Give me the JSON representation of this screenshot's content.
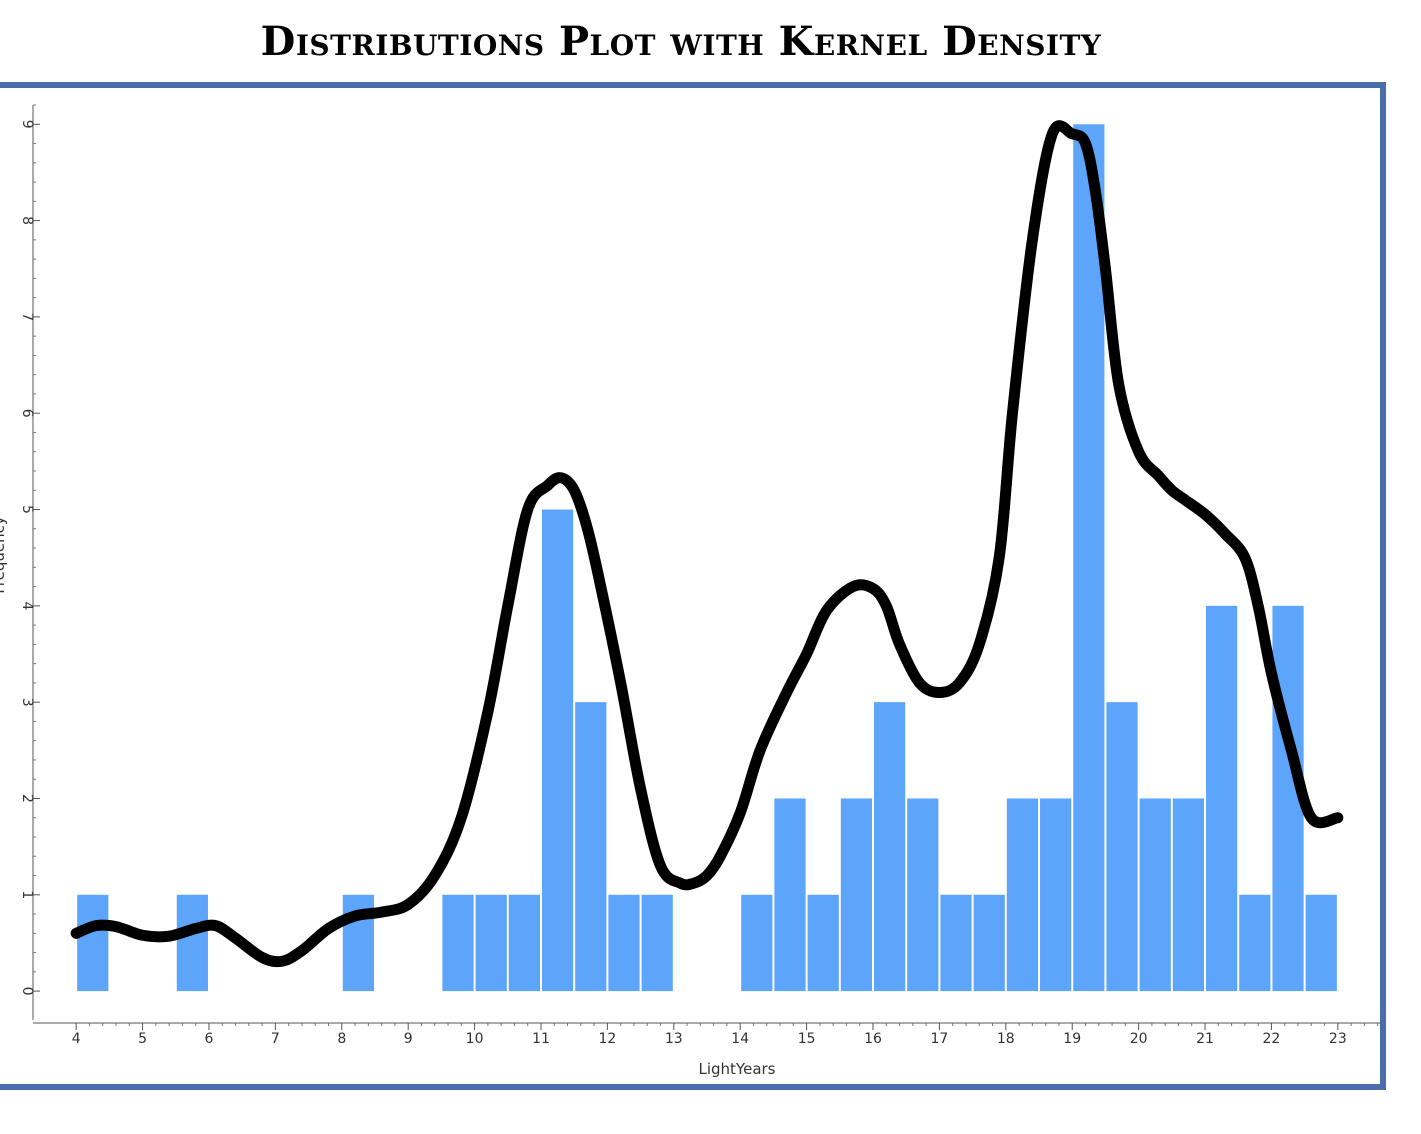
{
  "title": "Distributions Plot with Kernel Density",
  "colors": {
    "bar": "#5da4fb",
    "curve": "#000000",
    "frame": "#4a6ea9"
  },
  "chart_data": {
    "type": "bar",
    "xlabel": "LightYears",
    "ylabel": "Frequency",
    "xlim": [
      3.35,
      23.65
    ],
    "ylim": [
      -0.3,
      9.2
    ],
    "xticks": [
      4,
      5,
      6,
      7,
      8,
      9,
      10,
      11,
      12,
      13,
      14,
      15,
      16,
      17,
      18,
      19,
      20,
      21,
      22,
      23
    ],
    "yticks": [
      0,
      1,
      2,
      3,
      4,
      5,
      6,
      7,
      8,
      9
    ],
    "bin_width": 0.5,
    "bins": [
      {
        "start": 4.0,
        "count": 1
      },
      {
        "start": 5.5,
        "count": 1
      },
      {
        "start": 8.0,
        "count": 1
      },
      {
        "start": 9.5,
        "count": 1
      },
      {
        "start": 10.0,
        "count": 1
      },
      {
        "start": 10.5,
        "count": 1
      },
      {
        "start": 11.0,
        "count": 5
      },
      {
        "start": 11.5,
        "count": 3
      },
      {
        "start": 12.0,
        "count": 1
      },
      {
        "start": 12.5,
        "count": 1
      },
      {
        "start": 14.0,
        "count": 1
      },
      {
        "start": 14.5,
        "count": 2
      },
      {
        "start": 15.0,
        "count": 1
      },
      {
        "start": 15.5,
        "count": 2
      },
      {
        "start": 16.0,
        "count": 3
      },
      {
        "start": 16.5,
        "count": 2
      },
      {
        "start": 17.0,
        "count": 1
      },
      {
        "start": 17.5,
        "count": 1
      },
      {
        "start": 18.0,
        "count": 2
      },
      {
        "start": 18.5,
        "count": 2
      },
      {
        "start": 19.0,
        "count": 9
      },
      {
        "start": 19.5,
        "count": 3
      },
      {
        "start": 20.0,
        "count": 2
      },
      {
        "start": 20.5,
        "count": 2
      },
      {
        "start": 21.0,
        "count": 4
      },
      {
        "start": 21.5,
        "count": 1
      },
      {
        "start": 22.0,
        "count": 4
      },
      {
        "start": 22.5,
        "count": 1
      }
    ],
    "density_curve": {
      "x": [
        4.0,
        4.3,
        4.6,
        5.0,
        5.4,
        5.8,
        6.1,
        6.4,
        6.8,
        7.1,
        7.4,
        7.8,
        8.2,
        8.6,
        9.0,
        9.4,
        9.8,
        10.2,
        10.5,
        10.8,
        11.1,
        11.3,
        11.5,
        11.7,
        11.9,
        12.2,
        12.5,
        12.8,
        13.1,
        13.3,
        13.5,
        13.7,
        14.0,
        14.3,
        14.7,
        15.0,
        15.3,
        15.7,
        16.0,
        16.2,
        16.4,
        16.7,
        17.0,
        17.3,
        17.6,
        17.9,
        18.1,
        18.4,
        18.7,
        19.0,
        19.2,
        19.35,
        19.5,
        19.7,
        20.0,
        20.3,
        20.5,
        20.7,
        21.0,
        21.3,
        21.6,
        21.8,
        22.0,
        22.3,
        22.6,
        23.0
      ],
      "y": [
        0.6,
        0.68,
        0.67,
        0.58,
        0.57,
        0.65,
        0.68,
        0.55,
        0.35,
        0.31,
        0.42,
        0.65,
        0.78,
        0.82,
        0.9,
        1.2,
        1.8,
        2.9,
        4.0,
        5.0,
        5.25,
        5.33,
        5.2,
        4.8,
        4.2,
        3.2,
        2.1,
        1.3,
        1.12,
        1.12,
        1.2,
        1.4,
        1.85,
        2.5,
        3.1,
        3.5,
        3.95,
        4.2,
        4.18,
        4.0,
        3.6,
        3.2,
        3.1,
        3.2,
        3.6,
        4.5,
        6.0,
        7.8,
        8.9,
        8.9,
        8.8,
        8.3,
        7.5,
        6.3,
        5.6,
        5.35,
        5.2,
        5.1,
        4.95,
        4.75,
        4.5,
        4.0,
        3.3,
        2.5,
        1.8,
        1.8
      ]
    }
  }
}
